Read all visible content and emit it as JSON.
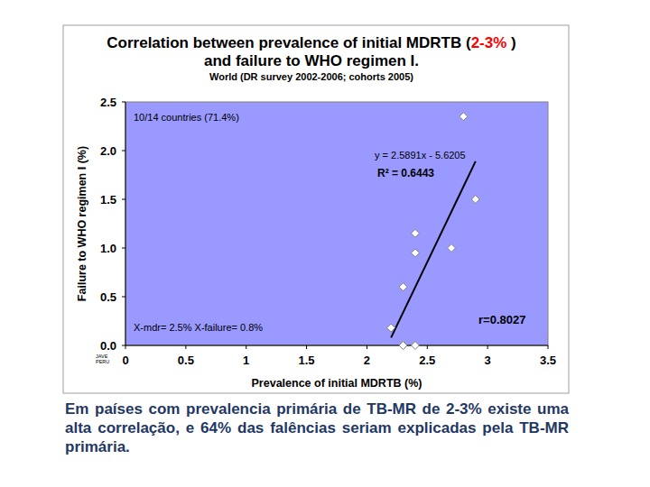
{
  "chart_data": {
    "type": "scatter",
    "title": [
      "Correlation between prevalence of initial MDRTB (2-3% )",
      "and failure to WHO regimen I."
    ],
    "title_highlight": "2-3%",
    "subtitle": "World (DR survey 2002-2006; cohorts 2005)",
    "x_label": "Prevalence of initial MDRTB (%)",
    "y_label": "Failure to WHO regimen I (%)",
    "x": [
      2.8,
      2.9,
      2.4,
      2.7,
      2.4,
      2.3,
      2.2,
      2.3,
      2.4
    ],
    "values": [
      2.35,
      1.5,
      1.15,
      1.0,
      0.95,
      0.6,
      0.18,
      0,
      0
    ],
    "color": "#ffffff",
    "marker": "diamond",
    "trendline": {
      "x": [
        2.2,
        2.9
      ],
      "y": [
        0.08,
        1.89
      ]
    },
    "annotations": [
      "10/14 countries (71.4%)",
      "y = 2.5891x - 5.6205",
      "R² = 0.6443",
      "X-mdr= 2.5% X-failure= 0.8%",
      "r=0.8027"
    ],
    "corner_note": [
      "JAVE",
      "PERU"
    ],
    "xlim": [
      0,
      3.5
    ],
    "xticks": [
      0,
      0.5,
      1,
      1.5,
      2,
      2.5,
      3,
      3.5
    ],
    "ylim": [
      0,
      2.5
    ],
    "yticks": [
      {
        "value": 0,
        "label": "0.0"
      },
      0.5,
      {
        "value": 1,
        "label": "1.0"
      },
      1.5,
      {
        "value": 2,
        "label": "2.0"
      },
      2.5
    ],
    "grid": false
  },
  "caption": "Em países com prevalencia primária de TB-MR de 2-3% existe uma alta correlação, e 64% das falências seriam explicadas pela TB-MR primária."
}
